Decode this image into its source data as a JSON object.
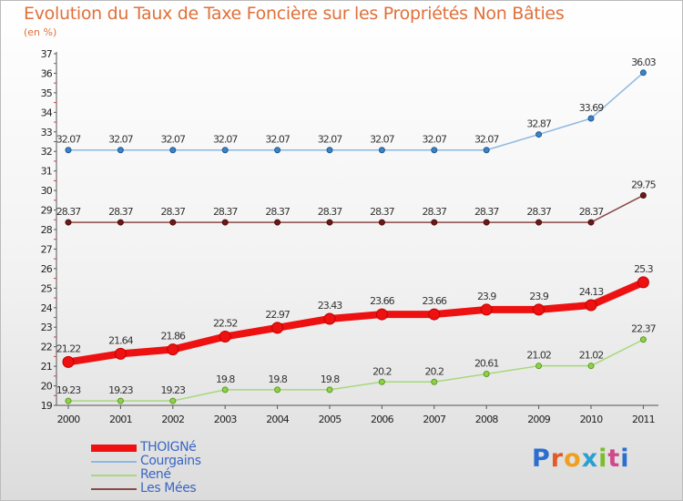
{
  "chart_data": {
    "type": "line",
    "title": "Evolution du Taux de Taxe Foncière sur les Propriétés Non Bâties",
    "ylabel": "(en %)",
    "xlabel": "",
    "ylim": [
      19,
      37
    ],
    "yticks": [
      "19",
      "20",
      "21",
      "22",
      "23",
      "24",
      "25",
      "26",
      "27",
      "28",
      "29",
      "30",
      "31",
      "32",
      "33",
      "34",
      "35",
      "36",
      "37"
    ],
    "categories": [
      "2000",
      "2001",
      "2002",
      "2003",
      "2004",
      "2005",
      "2006",
      "2007",
      "2008",
      "2009",
      "2010",
      "2011"
    ],
    "series": [
      {
        "name": "THOIGNé",
        "color": "#ee1111",
        "marker_stroke": "#b00000",
        "width": 8,
        "radius": 6,
        "values": [
          21.22,
          21.64,
          21.86,
          22.52,
          22.97,
          23.43,
          23.66,
          23.66,
          23.9,
          23.9,
          24.13,
          25.3
        ],
        "labels": [
          "21.22",
          "21.64",
          "21.86",
          "22.52",
          "22.97",
          "23.43",
          "23.66",
          "23.66",
          "23.9",
          "23.9",
          "24.13",
          "25.3"
        ]
      },
      {
        "name": "Courgains",
        "color": "#8db8df",
        "marker": "#3f82c4",
        "marker_stroke": "#1d5a96",
        "width": 1.5,
        "radius": 3,
        "values": [
          32.07,
          32.07,
          32.07,
          32.07,
          32.07,
          32.07,
          32.07,
          32.07,
          32.07,
          32.87,
          33.69,
          36.03
        ],
        "labels": [
          "32.07",
          "32.07",
          "32.07",
          "32.07",
          "32.07",
          "32.07",
          "32.07",
          "32.07",
          "32.07",
          "32.87",
          "33.69",
          "36.03"
        ]
      },
      {
        "name": "René",
        "color": "#a7d87a",
        "marker": "#8ed24a",
        "marker_stroke": "#5c9a20",
        "width": 1.5,
        "radius": 3,
        "values": [
          19.23,
          19.23,
          19.23,
          19.8,
          19.8,
          19.8,
          20.2,
          20.2,
          20.61,
          21.02,
          21.02,
          22.37
        ],
        "labels": [
          "19.23",
          "19.23",
          "19.23",
          "19.8",
          "19.8",
          "19.8",
          "20.2",
          "20.2",
          "20.61",
          "21.02",
          "21.02",
          "22.37"
        ]
      },
      {
        "name": "Les Mées",
        "color": "#8a4a48",
        "marker": "#6b1a1a",
        "marker_stroke": "#4a0c0c",
        "width": 1.5,
        "radius": 3,
        "values": [
          28.37,
          28.37,
          28.37,
          28.37,
          28.37,
          28.37,
          28.37,
          28.37,
          28.37,
          28.37,
          28.37,
          29.75
        ],
        "labels": [
          "28.37",
          "28.37",
          "28.37",
          "28.37",
          "28.37",
          "28.37",
          "28.37",
          "28.37",
          "28.37",
          "28.37",
          "28.37",
          "29.75"
        ]
      }
    ]
  },
  "logo": {
    "letters": [
      "P",
      "r",
      "o",
      "x",
      "i",
      "t",
      "i"
    ]
  }
}
